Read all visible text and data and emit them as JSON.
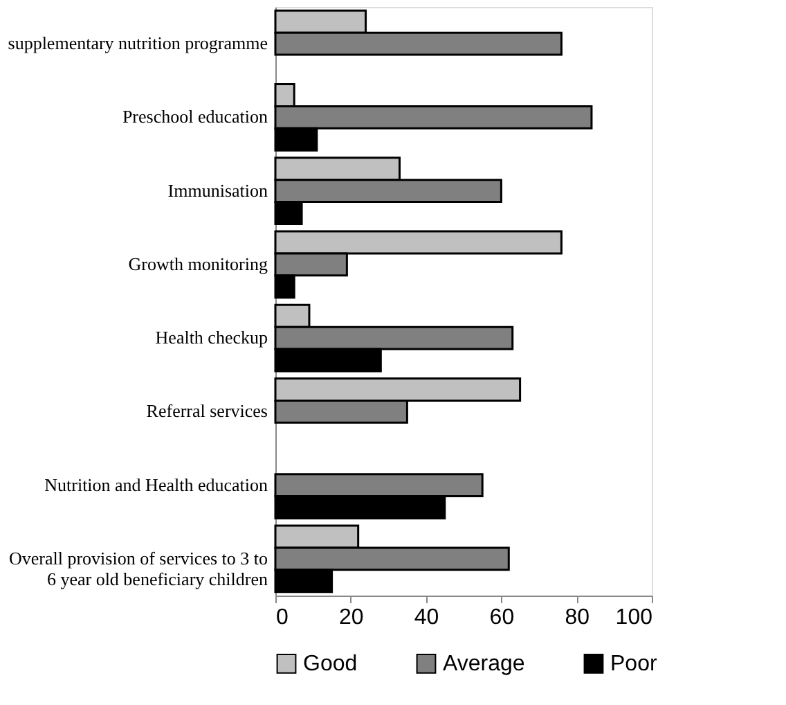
{
  "chart_data": {
    "type": "bar",
    "orientation": "horizontal",
    "categories": [
      "supplementary nutrition programme",
      "Preschool education",
      "Immunisation",
      "Growth monitoring",
      "Health checkup",
      "Referral services",
      "Nutrition and Health education",
      "Overall provision of services to 3 to 6 year old beneficiary children"
    ],
    "series": [
      {
        "name": "Good",
        "color": "#c0c0c0",
        "values": [
          24,
          5,
          33,
          76,
          9,
          65,
          null,
          22
        ]
      },
      {
        "name": "Average",
        "color": "#808080",
        "values": [
          76,
          84,
          60,
          19,
          63,
          35,
          55,
          62
        ]
      },
      {
        "name": "Poor",
        "color": "#000000",
        "values": [
          null,
          11,
          7,
          5,
          28,
          null,
          45,
          15
        ]
      }
    ],
    "xlim": [
      0,
      100
    ],
    "xticks": [
      0,
      20,
      40,
      60,
      80,
      100
    ],
    "grid": false,
    "legend": "bottom"
  }
}
